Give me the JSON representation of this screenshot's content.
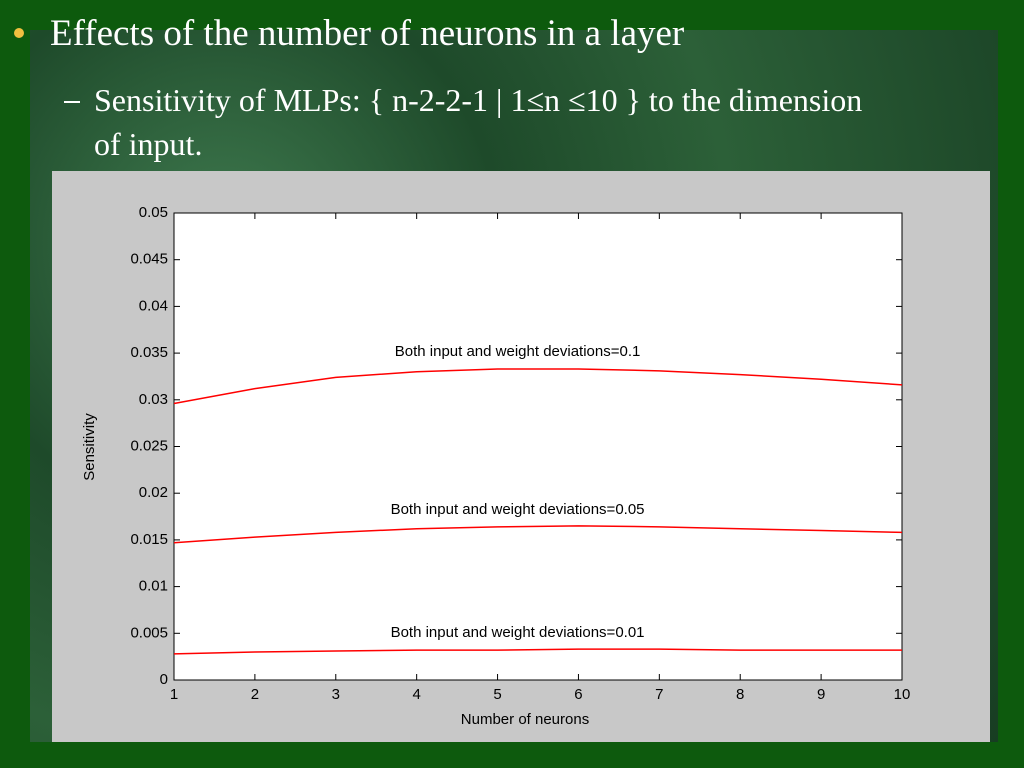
{
  "slide": {
    "bullet": "Effects of the number of neurons in a layer",
    "sub_bullet": "Sensitivity of MLPs: { n-2-2-1 | 1≤n ≤10 } to the dimension of input."
  },
  "chart_data": {
    "type": "line",
    "x_label": "Number of neurons",
    "y_label": "Sensitivity",
    "x": [
      1,
      2,
      3,
      4,
      5,
      6,
      7,
      8,
      9,
      10
    ],
    "series": [
      {
        "name": "Both input and weight deviations=0.1",
        "color": "#ff0000",
        "values": [
          0.0296,
          0.0312,
          0.0324,
          0.033,
          0.0333,
          0.0333,
          0.0331,
          0.0327,
          0.0322,
          0.0316
        ]
      },
      {
        "name": "Both input and weight deviations=0.05",
        "color": "#ff0000",
        "values": [
          0.0147,
          0.0153,
          0.0158,
          0.0162,
          0.0164,
          0.0165,
          0.0164,
          0.0162,
          0.016,
          0.0158
        ]
      },
      {
        "name": "Both input and weight deviations=0.01",
        "color": "#ff0000",
        "values": [
          0.0028,
          0.003,
          0.0031,
          0.0032,
          0.0032,
          0.0033,
          0.0033,
          0.0032,
          0.0032,
          0.0032
        ]
      }
    ],
    "xlim": [
      1,
      10
    ],
    "xticks": [
      1,
      2,
      3,
      4,
      5,
      6,
      7,
      8,
      9,
      10
    ],
    "ylim": [
      0,
      0.05
    ],
    "yticks": [
      0,
      0.005,
      0.01,
      0.015,
      0.02,
      0.025,
      0.03,
      0.035,
      0.04,
      0.045,
      0.05
    ]
  }
}
